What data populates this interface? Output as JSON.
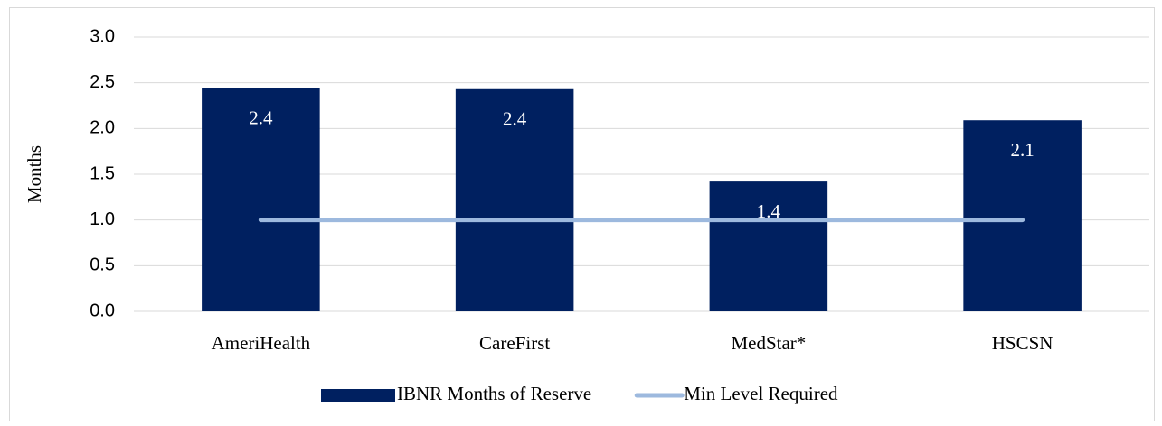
{
  "chart_data": {
    "type": "bar",
    "y_label": "Months",
    "categories": [
      "AmeriHealth",
      "CareFirst",
      "MedStar*",
      "HSCSN"
    ],
    "series": [
      {
        "name": "IBNR Months of Reserve",
        "type": "bar",
        "color": "#002060",
        "values": [
          2.44,
          2.43,
          1.42,
          2.09
        ],
        "value_labels": [
          "2.4",
          "2.4",
          "1.4",
          "2.1"
        ]
      },
      {
        "name": "Min Level Required",
        "type": "line",
        "color": "#9db9de",
        "values": [
          1.0,
          1.0,
          1.0,
          1.0
        ]
      }
    ],
    "ylim": [
      0,
      3
    ],
    "yticks": [
      {
        "value": 0,
        "label": "0.0"
      },
      0.5,
      {
        "value": 1,
        "label": "1.0"
      },
      1.5,
      {
        "value": 2,
        "label": "2.0"
      },
      2.5,
      {
        "value": 3,
        "label": "3.0"
      }
    ],
    "grid": true,
    "legend": "bottom"
  }
}
